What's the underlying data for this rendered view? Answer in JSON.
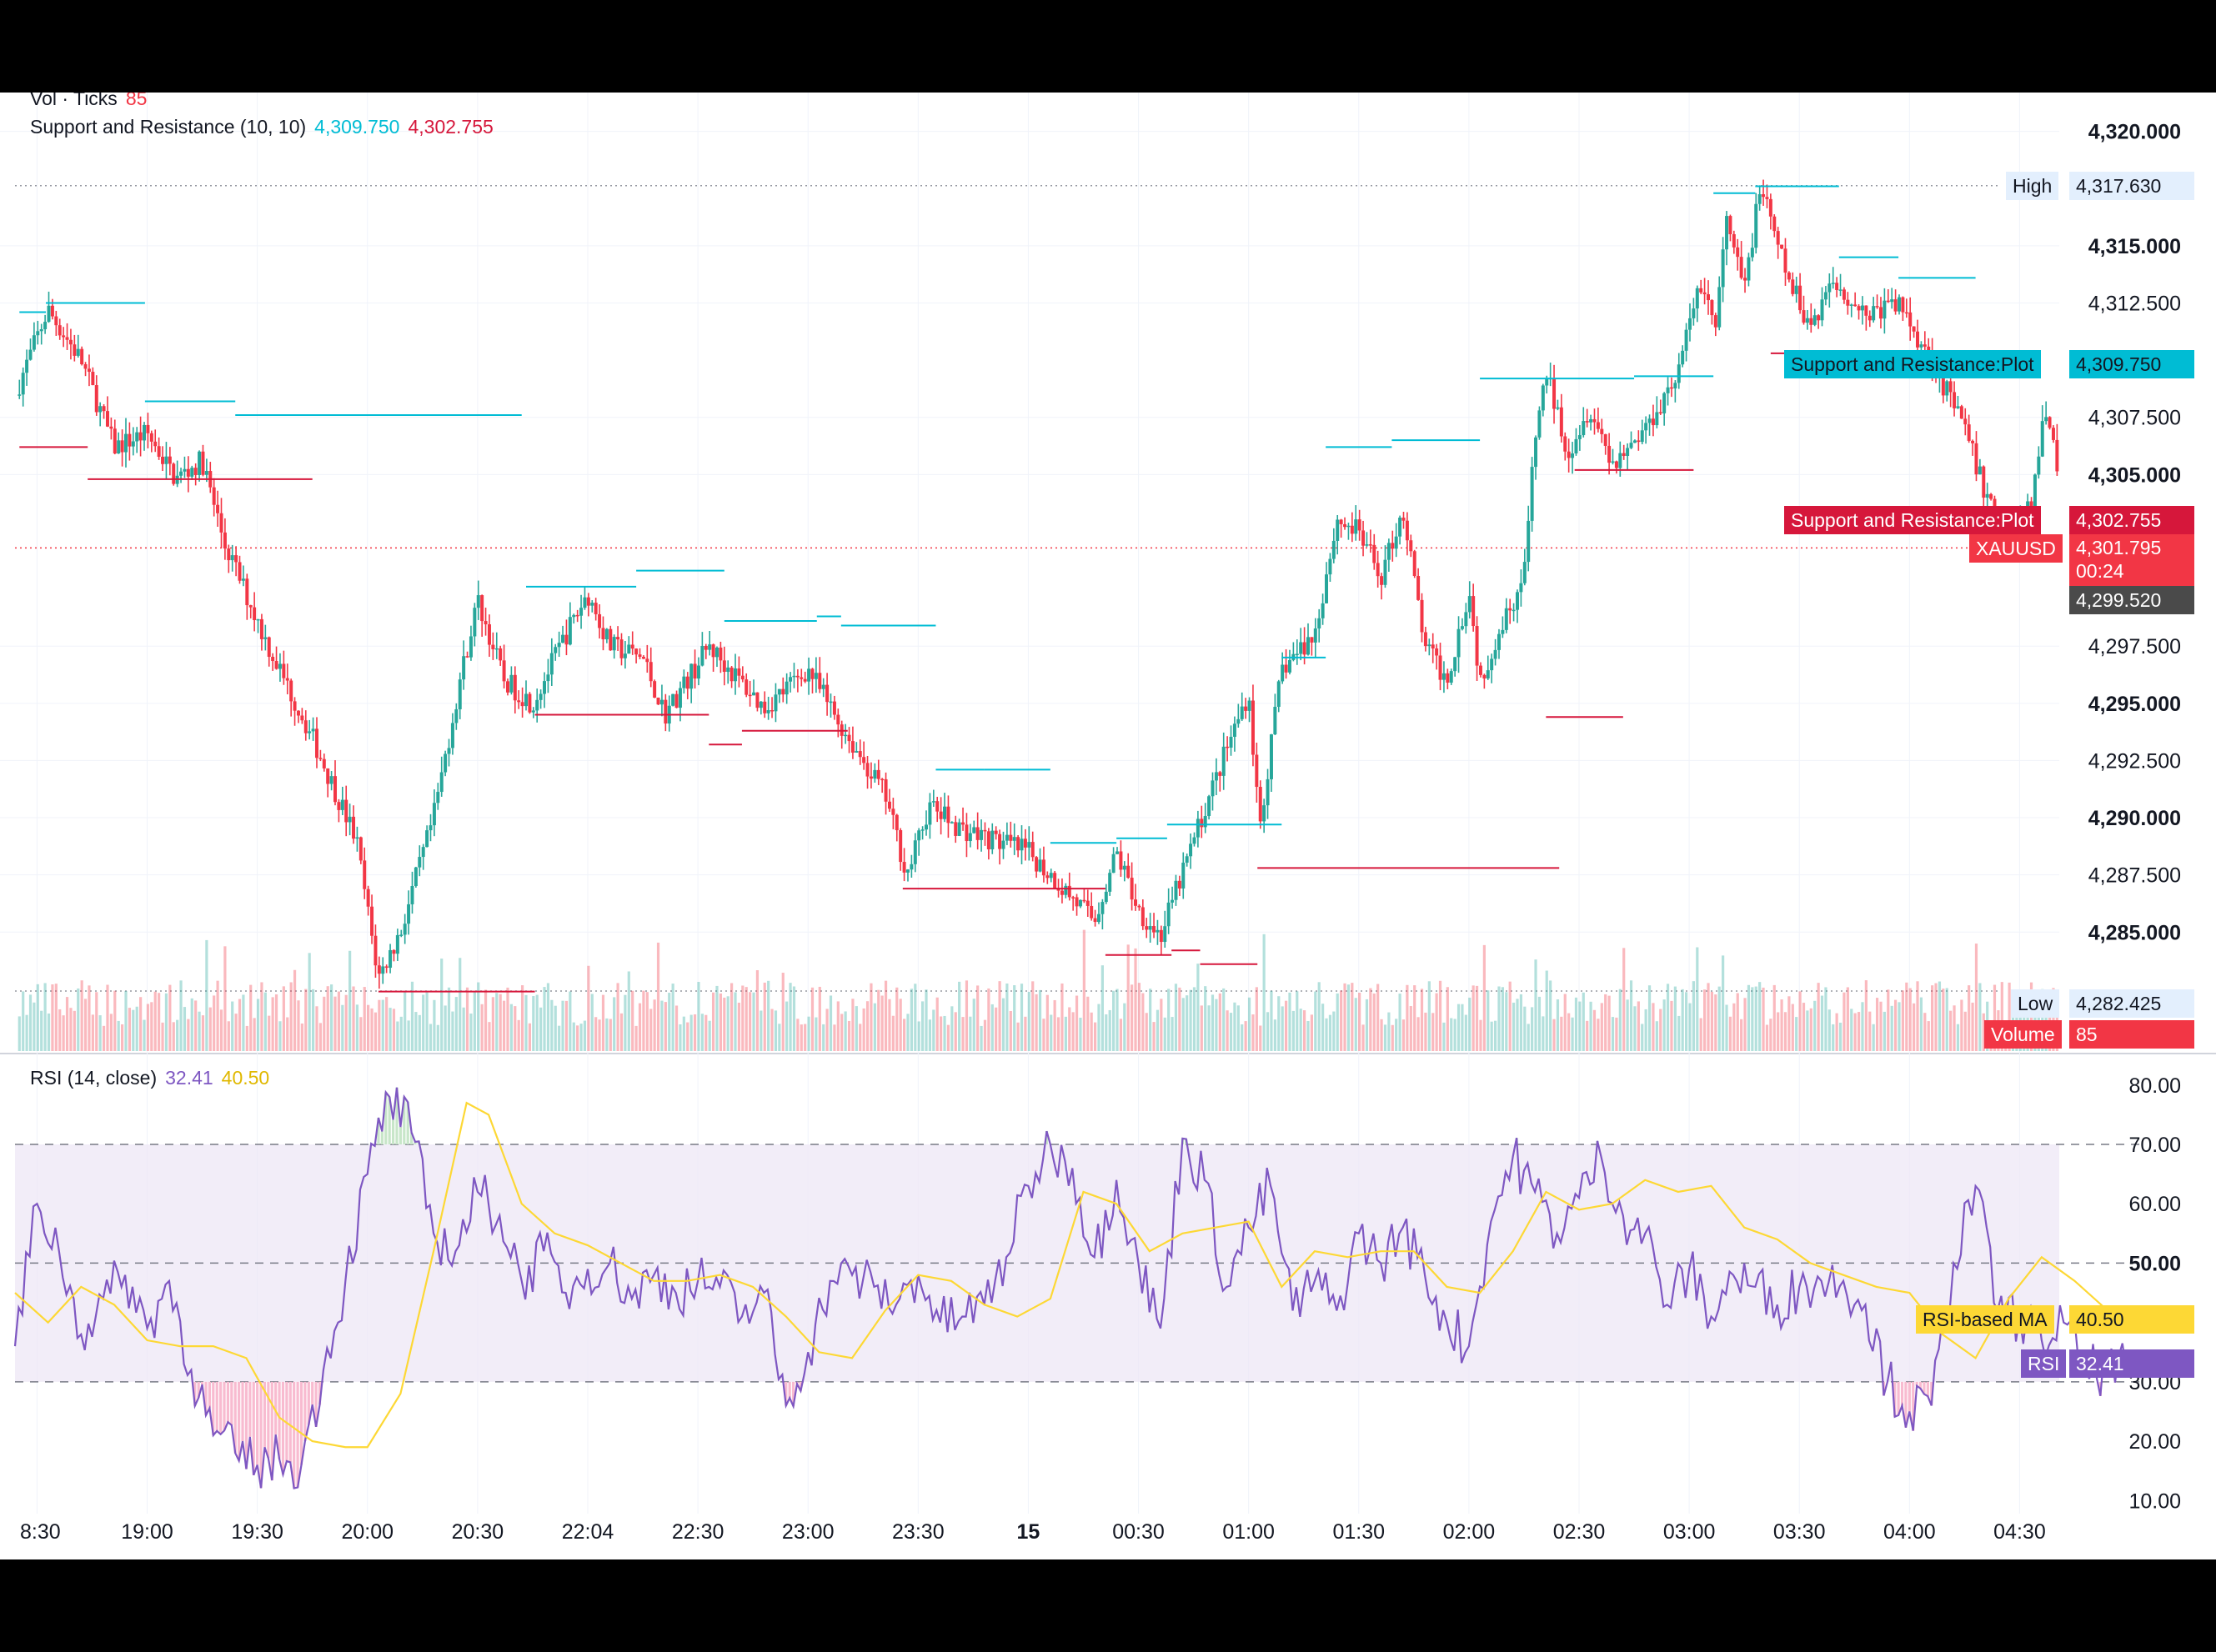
{
  "legend": {
    "vol_label": "Vol · Ticks",
    "vol_value": "85",
    "sr_label": "Support and Resistance (10, 10)",
    "sr_value_1": "4,309.750",
    "sr_value_2": "4,302.755",
    "rsi_label": "RSI (14, close)",
    "rsi_value": "32.41",
    "rsi_ma_value": "40.50"
  },
  "price_tags": {
    "high_label": "High",
    "high_value": "4,317.630",
    "resistance_label": "Support and Resistance:Plot",
    "resistance_value": "4,309.750",
    "support_label": "Support and Resistance:Plot",
    "support_value": "4,302.755",
    "symbol": "XAUUSD",
    "last_price": "4,301.795",
    "countdown": "00:24",
    "crosshair_price": "4,299.520",
    "low_label": "Low",
    "low_value": "4,282.425",
    "volume_label": "Volume",
    "volume_value": "85",
    "rsi_ma_label": "RSI-based MA",
    "rsi_ma_value": "40.50",
    "rsi_label": "RSI",
    "rsi_value": "32.41"
  },
  "colors": {
    "up": "#26a69a",
    "down": "#f23645",
    "resistance": "#00bcd4",
    "support": "#d6173b",
    "rsi": "#7e57c2",
    "rsi_ma": "#fdd835",
    "rsi_band": "#ede7f6"
  },
  "chart_data": [
    {
      "type": "candlestick",
      "title": "XAUUSD",
      "y_ticks": [
        "4,320.000",
        "4,315.000",
        "4,312.500",
        "4,307.500",
        "4,305.000",
        "4,297.500",
        "4,295.000",
        "4,292.500",
        "4,290.000",
        "4,287.500",
        "4,285.000"
      ],
      "y_tick_values": [
        4320,
        4315,
        4312.5,
        4307.5,
        4305,
        4297.5,
        4295,
        4292.5,
        4290,
        4287.5,
        4285
      ],
      "bold_ticks": [
        4320,
        4315,
        4305,
        4295,
        4290,
        4285
      ],
      "ylim": [
        4279.8,
        4321.7
      ],
      "x_ticks": [
        "8:30",
        "19:00",
        "19:30",
        "20:00",
        "20:30",
        "22:04",
        "22:30",
        "23:00",
        "23:30",
        "15",
        "00:30",
        "01:00",
        "01:30",
        "02:00",
        "02:30",
        "03:00",
        "03:30",
        "04:00",
        "04:30"
      ],
      "x_tick_hours": [
        18.5,
        19,
        19.5,
        20,
        20.5,
        21,
        21.5,
        22,
        22.5,
        23,
        23.5,
        24,
        24.5,
        25,
        25.5,
        26,
        26.5,
        27,
        27.5
      ],
      "xlim": [
        18.4,
        27.68
      ],
      "path": [
        [
          18.4,
          4308.5
        ],
        [
          18.5,
          4311.0
        ],
        [
          18.55,
          4312.2
        ],
        [
          18.7,
          4310.0
        ],
        [
          18.85,
          4306.2
        ],
        [
          19.0,
          4306.8
        ],
        [
          19.13,
          4304.8
        ],
        [
          19.25,
          4305.6
        ],
        [
          19.35,
          4302.0
        ],
        [
          19.55,
          4297.5
        ],
        [
          19.75,
          4293.5
        ],
        [
          19.95,
          4289.0
        ],
        [
          20.05,
          4283.0
        ],
        [
          20.15,
          4285.0
        ],
        [
          20.3,
          4290.0
        ],
        [
          20.42,
          4296.0
        ],
        [
          20.5,
          4299.5
        ],
        [
          20.62,
          4296.0
        ],
        [
          20.75,
          4295.0
        ],
        [
          20.9,
          4298.0
        ],
        [
          21.0,
          4299.8
        ],
        [
          21.1,
          4297.5
        ],
        [
          21.25,
          4297.0
        ],
        [
          21.35,
          4294.5
        ],
        [
          21.55,
          4297.5
        ],
        [
          21.8,
          4294.8
        ],
        [
          22.0,
          4296.5
        ],
        [
          22.15,
          4294.0
        ],
        [
          22.35,
          4291.0
        ],
        [
          22.45,
          4287.5
        ],
        [
          22.55,
          4290.5
        ],
        [
          22.7,
          4289.5
        ],
        [
          22.85,
          4289.0
        ],
        [
          23.0,
          4288.5
        ],
        [
          23.15,
          4287.0
        ],
        [
          23.3,
          4285.5
        ],
        [
          23.4,
          4288.5
        ],
        [
          23.5,
          4286.0
        ],
        [
          23.6,
          4284.8
        ],
        [
          23.75,
          4289.0
        ],
        [
          23.9,
          4293.0
        ],
        [
          24.0,
          4295.5
        ],
        [
          24.05,
          4289.5
        ],
        [
          24.15,
          4296.5
        ],
        [
          24.3,
          4298.0
        ],
        [
          24.4,
          4303.0
        ],
        [
          24.5,
          4302.5
        ],
        [
          24.6,
          4300.5
        ],
        [
          24.7,
          4303.5
        ],
        [
          24.8,
          4297.5
        ],
        [
          24.9,
          4296.0
        ],
        [
          25.0,
          4300.0
        ],
        [
          25.05,
          4296.0
        ],
        [
          25.15,
          4298.5
        ],
        [
          25.25,
          4300.5
        ],
        [
          25.3,
          4306.5
        ],
        [
          25.35,
          4309.5
        ],
        [
          25.45,
          4306.0
        ],
        [
          25.55,
          4308.0
        ],
        [
          25.65,
          4305.5
        ],
        [
          25.8,
          4307.0
        ],
        [
          25.95,
          4309.5
        ],
        [
          26.05,
          4313.5
        ],
        [
          26.12,
          4311.5
        ],
        [
          26.17,
          4316.0
        ],
        [
          26.25,
          4313.0
        ],
        [
          26.32,
          4317.6
        ],
        [
          26.45,
          4313.5
        ],
        [
          26.55,
          4311.5
        ],
        [
          26.65,
          4313.5
        ],
        [
          26.8,
          4312.0
        ],
        [
          26.95,
          4312.5
        ],
        [
          27.1,
          4310.0
        ],
        [
          27.25,
          4307.0
        ],
        [
          27.35,
          4304.0
        ],
        [
          27.45,
          4302.5
        ],
        [
          27.55,
          4303.5
        ],
        [
          27.62,
          4308.0
        ],
        [
          27.7,
          4304.0
        ],
        [
          27.85,
          4302.3
        ],
        [
          28.0,
          4302.0
        ]
      ],
      "resistance_segments": [
        [
          18.42,
          18.54,
          4312.1
        ],
        [
          18.54,
          18.99,
          4312.5
        ],
        [
          18.99,
          19.4,
          4308.2
        ],
        [
          19.4,
          20.7,
          4307.6
        ],
        [
          20.72,
          21.22,
          4300.1
        ],
        [
          21.22,
          21.62,
          4300.8
        ],
        [
          21.62,
          22.04,
          4298.6
        ],
        [
          22.04,
          22.15,
          4298.8
        ],
        [
          22.15,
          22.58,
          4298.4
        ],
        [
          22.58,
          22.8,
          4292.1
        ],
        [
          22.8,
          23.1,
          4292.1
        ],
        [
          23.1,
          23.4,
          4288.9
        ],
        [
          23.4,
          23.63,
          4289.1
        ],
        [
          23.63,
          24.15,
          4289.7
        ],
        [
          24.15,
          24.35,
          4297.0
        ],
        [
          24.35,
          24.65,
          4306.2
        ],
        [
          24.65,
          25.05,
          4306.5
        ],
        [
          25.05,
          25.75,
          4309.2
        ],
        [
          25.75,
          26.11,
          4309.3
        ],
        [
          26.11,
          26.3,
          4317.3
        ],
        [
          26.3,
          26.68,
          4317.6
        ],
        [
          26.68,
          26.95,
          4314.5
        ],
        [
          26.95,
          27.3,
          4313.6
        ]
      ],
      "support_segments": [
        [
          18.42,
          18.73,
          4306.2
        ],
        [
          18.73,
          19.75,
          4304.8
        ],
        [
          20.05,
          20.76,
          4282.4
        ],
        [
          20.76,
          21.55,
          4294.5
        ],
        [
          21.55,
          21.7,
          4293.2
        ],
        [
          21.7,
          22.18,
          4293.8
        ],
        [
          22.43,
          23.35,
          4286.9
        ],
        [
          23.35,
          23.65,
          4284.0
        ],
        [
          23.65,
          23.78,
          4284.2
        ],
        [
          23.78,
          24.04,
          4283.6
        ],
        [
          24.04,
          25.41,
          4287.8
        ],
        [
          25.35,
          25.7,
          4294.4
        ],
        [
          25.48,
          26.02,
          4305.2
        ],
        [
          26.37,
          26.63,
          4310.3
        ],
        [
          26.63,
          26.93,
          4310.3
        ]
      ],
      "high": 4317.63,
      "low": 4282.425,
      "last": 4301.795
    },
    {
      "type": "line",
      "title": "RSI (14, close)",
      "y_ticks": [
        "80.00",
        "70.00",
        "60.00",
        "50.00",
        "30.00",
        "20.00",
        "10.00"
      ],
      "y_tick_values": [
        80,
        70,
        60,
        50,
        30,
        20,
        10
      ],
      "bold_ticks": [
        50
      ],
      "ylim": [
        7.8,
        84.6
      ],
      "band": [
        30,
        70
      ],
      "mid": 50,
      "series": [
        {
          "name": "RSI",
          "x": [
            18.4,
            18.5,
            18.6,
            18.7,
            18.8,
            18.9,
            19.0,
            19.1,
            19.2,
            19.3,
            19.4,
            19.5,
            19.6,
            19.7,
            19.8,
            19.9,
            20.0,
            20.1,
            20.2,
            20.3,
            20.4,
            20.5,
            20.6,
            20.7,
            20.8,
            20.9,
            21.0,
            21.1,
            21.2,
            21.3,
            21.4,
            21.5,
            21.6,
            21.7,
            21.8,
            21.9,
            22.0,
            22.1,
            22.2,
            22.3,
            22.4,
            22.5,
            22.6,
            22.7,
            22.8,
            22.9,
            23.0,
            23.1,
            23.2,
            23.3,
            23.4,
            23.5,
            23.6,
            23.7,
            23.8,
            23.9,
            24.0,
            24.1,
            24.2,
            24.3,
            24.4,
            24.5,
            24.6,
            24.7,
            24.8,
            24.9,
            25.0,
            25.1,
            25.2,
            25.3,
            25.4,
            25.5,
            25.6,
            25.7,
            25.8,
            25.9,
            26.0,
            26.1,
            26.2,
            26.3,
            26.4,
            26.5,
            26.6,
            26.7,
            26.8,
            26.9,
            27.0,
            27.1,
            27.2,
            27.3,
            27.4,
            27.5,
            27.6,
            27.7,
            27.8,
            27.9,
            28.0
          ],
          "values": [
            36,
            60,
            52,
            38,
            44,
            48,
            39,
            47,
            32,
            21,
            18,
            16,
            17,
            16,
            32,
            47,
            65,
            78,
            72,
            55,
            52,
            62,
            58,
            47,
            52,
            45,
            49,
            50,
            44,
            48,
            45,
            47,
            46,
            41,
            45,
            26,
            35,
            47,
            48,
            46,
            43,
            48,
            40,
            41,
            43,
            51,
            63,
            70,
            66,
            51,
            64,
            50,
            39,
            71,
            64,
            46,
            56,
            63,
            42,
            47,
            42,
            55,
            50,
            56,
            48,
            40,
            36,
            57,
            68,
            62,
            55,
            61,
            68,
            58,
            55,
            43,
            49,
            41,
            48,
            46,
            43,
            46,
            47,
            47,
            43,
            30,
            25,
            26,
            50,
            63,
            42,
            41,
            37,
            40,
            32,
            32,
            32
          ]
        },
        {
          "name": "RSI-based MA",
          "x": [
            18.4,
            18.55,
            18.7,
            18.85,
            19.0,
            19.15,
            19.3,
            19.45,
            19.6,
            19.75,
            19.9,
            20.0,
            20.15,
            20.3,
            20.45,
            20.55,
            20.7,
            20.85,
            21.0,
            21.15,
            21.3,
            21.45,
            21.6,
            21.75,
            21.9,
            22.05,
            22.2,
            22.35,
            22.5,
            22.65,
            22.8,
            22.95,
            23.1,
            23.25,
            23.4,
            23.55,
            23.7,
            23.85,
            24.0,
            24.15,
            24.3,
            24.45,
            24.6,
            24.75,
            24.9,
            25.05,
            25.2,
            25.35,
            25.5,
            25.65,
            25.8,
            25.95,
            26.1,
            26.25,
            26.4,
            26.55,
            26.7,
            26.85,
            27.0,
            27.15,
            27.3,
            27.45,
            27.6,
            27.75,
            27.9,
            28.0
          ],
          "values": [
            45,
            40,
            46,
            43,
            37,
            36,
            36,
            34,
            24,
            20,
            19,
            19,
            28,
            52,
            77,
            75,
            60,
            55,
            53,
            50,
            47,
            47,
            48,
            46,
            41,
            35,
            34,
            42,
            48,
            47,
            43,
            41,
            44,
            62,
            60,
            52,
            55,
            56,
            57,
            46,
            52,
            51,
            52,
            52,
            46,
            45,
            52,
            62,
            59,
            60,
            64,
            62,
            63,
            56,
            54,
            50,
            48,
            46,
            45,
            38,
            34,
            44,
            51,
            47,
            42,
            41
          ]
        }
      ]
    }
  ]
}
